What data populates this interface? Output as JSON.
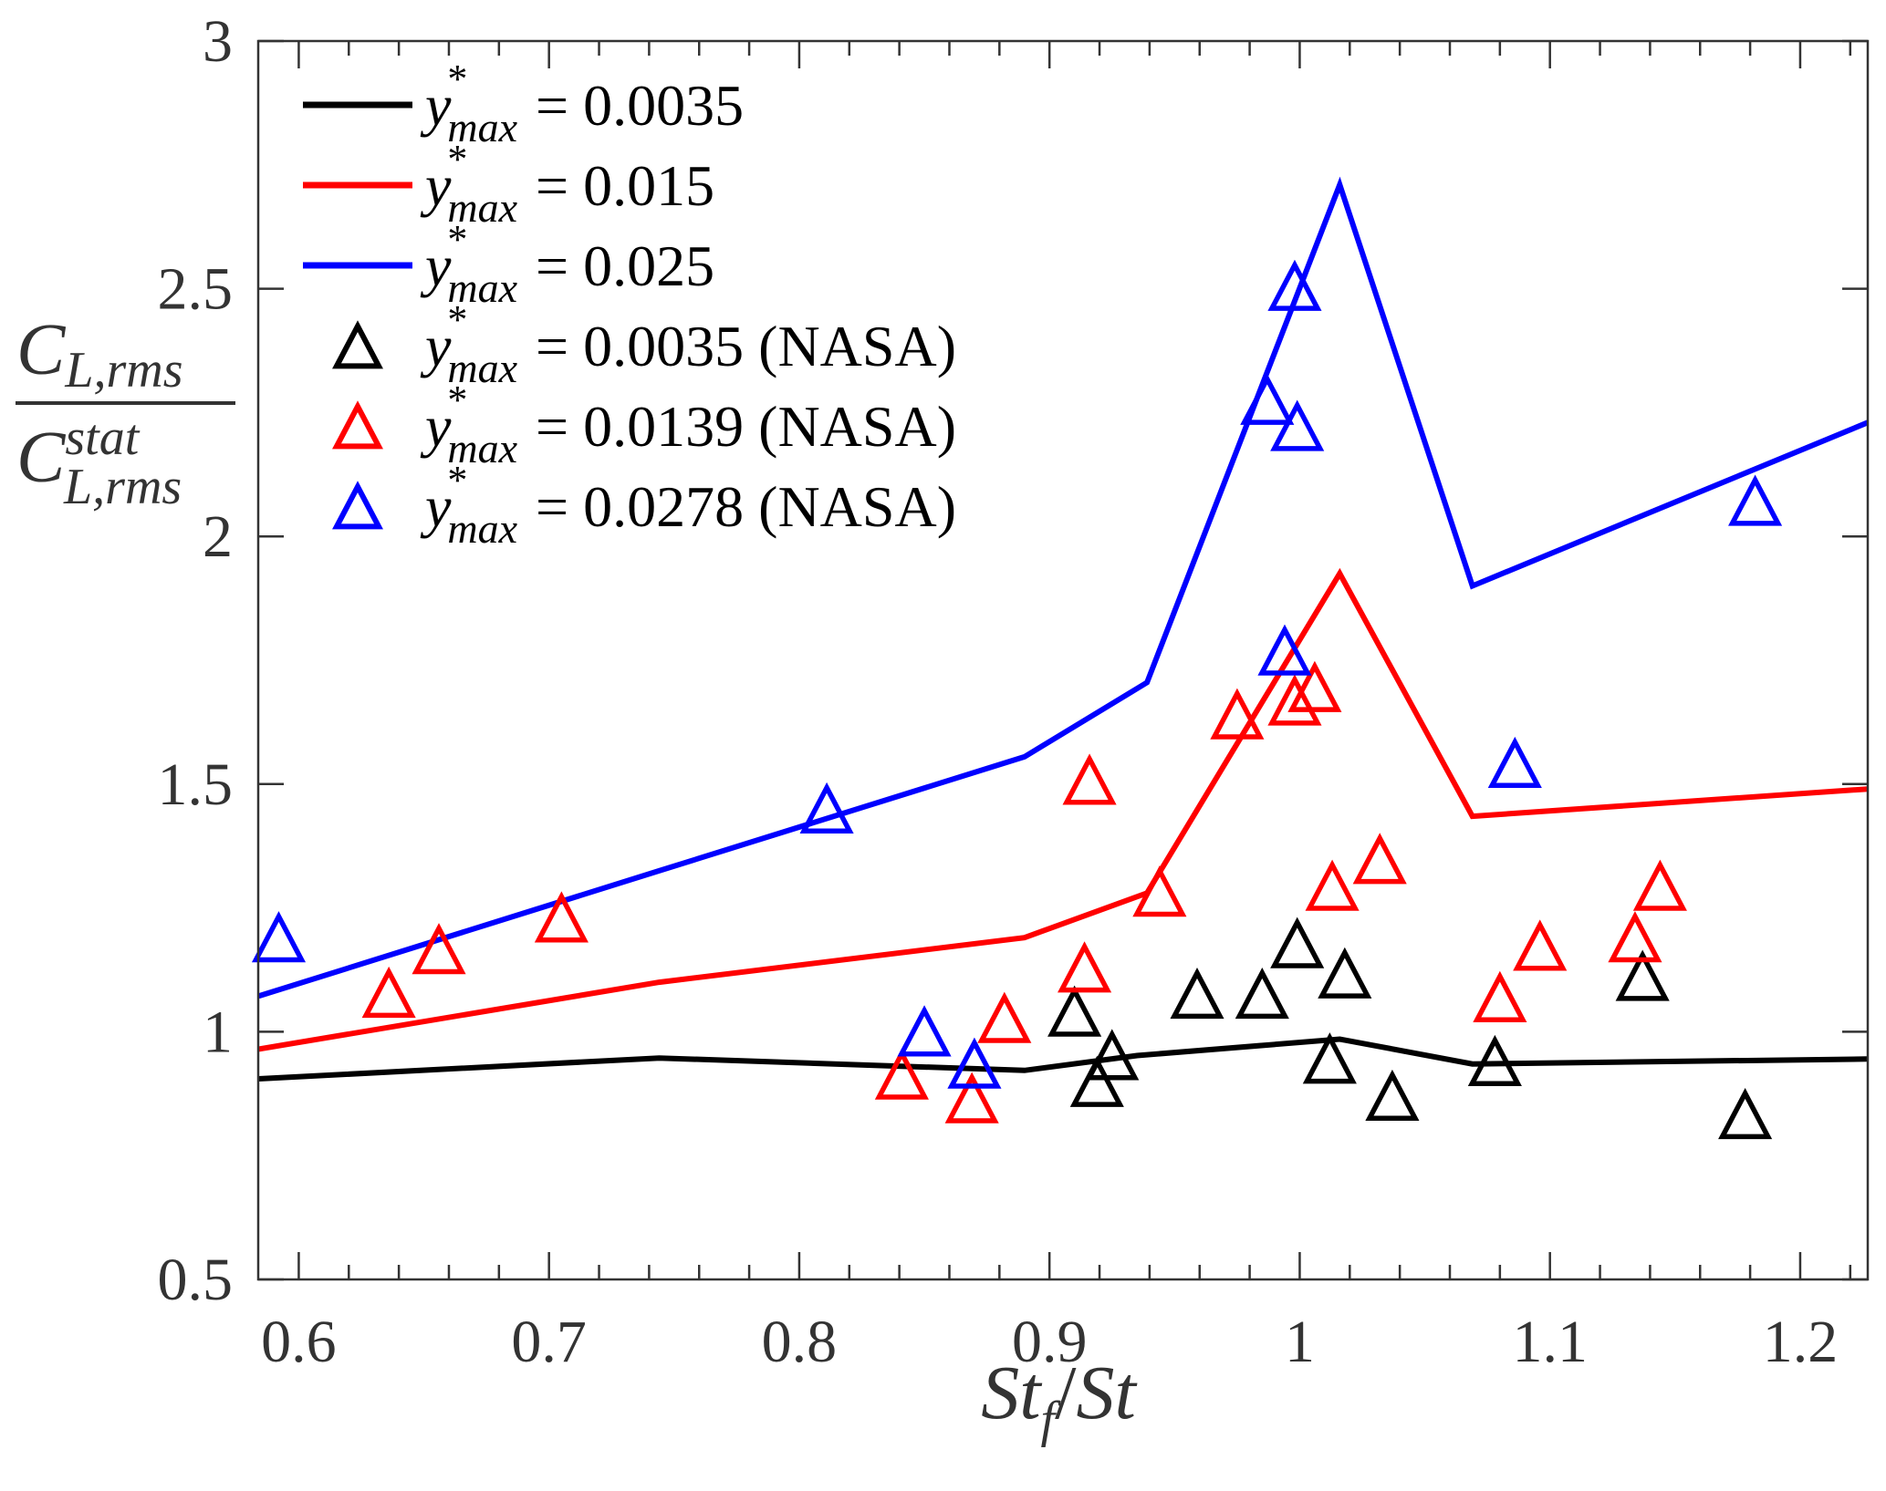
{
  "chart_data": {
    "type": "line",
    "title": "",
    "xlabel": "St_f / St",
    "xlabel_parts": {
      "main1": "St",
      "sub1": "f",
      "slash": "/",
      "main2": "St"
    },
    "ylabel": "C_L,rms / C_L,rms^stat",
    "ylabel_parts": {
      "num_main": "C",
      "num_sub": "L,rms",
      "den_main": "C",
      "den_sub": "L,rms",
      "den_sup": "stat"
    },
    "xlim": [
      0.5838,
      1.227
    ],
    "ylim": [
      0.5,
      3
    ],
    "xticks": [
      0.6,
      0.7,
      0.8,
      0.9,
      1.0,
      1.1,
      1.2
    ],
    "xtick_labels": [
      "0.6",
      "0.7",
      "0.8",
      "0.9",
      "1",
      "1.1",
      "1.2"
    ],
    "xminor_step": 0.02,
    "yticks": [
      0.5,
      1,
      1.5,
      2,
      2.5,
      3
    ],
    "ytick_labels": [
      "0.5",
      "1",
      "1.5",
      "2",
      "2.5",
      "3"
    ],
    "grid": false,
    "legend_position": "top-left",
    "series": [
      {
        "name": "y*_max = 0.0035",
        "legend_value": "0.0035",
        "legend_suffix": "",
        "kind": "line",
        "color": "#000000",
        "x": [
          0.584,
          0.744,
          0.89,
          0.935,
          1.016,
          1.069,
          1.227
        ],
        "y": [
          0.905,
          0.947,
          0.922,
          0.952,
          0.985,
          0.935,
          0.945
        ]
      },
      {
        "name": "y*_max = 0.015",
        "legend_value": "0.015",
        "legend_suffix": "",
        "kind": "line",
        "color": "#ff0000",
        "x": [
          0.584,
          0.744,
          0.89,
          0.939,
          1.016,
          1.069,
          1.227
        ],
        "y": [
          0.965,
          1.1,
          1.19,
          1.28,
          1.925,
          1.435,
          1.49
        ]
      },
      {
        "name": "y*_max = 0.025",
        "legend_value": "0.025",
        "legend_suffix": "",
        "kind": "line",
        "color": "#0000ff",
        "x": [
          0.584,
          0.744,
          0.89,
          0.939,
          1.016,
          1.069,
          1.227
        ],
        "y": [
          1.072,
          1.325,
          1.555,
          1.705,
          2.71,
          1.9,
          2.23
        ]
      },
      {
        "name": "y*_max = 0.0035 (NASA)",
        "legend_value": "0.0035",
        "legend_suffix": "(NASA)",
        "kind": "marker",
        "marker": "triangle-open",
        "color": "#000000",
        "x": [
          0.91,
          0.919,
          0.925,
          0.959,
          0.985,
          0.999,
          1.012,
          1.018,
          1.037,
          1.078,
          1.137,
          1.178
        ],
        "y": [
          1.032,
          0.89,
          0.944,
          1.068,
          1.068,
          1.17,
          0.937,
          1.109,
          0.862,
          0.932,
          1.104,
          0.825
        ]
      },
      {
        "name": "y*_max = 0.0139 (NASA)",
        "legend_value": "0.0139",
        "legend_suffix": "(NASA)",
        "kind": "marker",
        "marker": "triangle-open",
        "color": "#ff0000",
        "x": [
          0.636,
          0.656,
          0.705,
          0.841,
          0.869,
          0.882,
          0.914,
          0.916,
          0.944,
          0.975,
          0.998,
          1.006,
          1.013,
          1.032,
          1.08,
          1.096,
          1.134,
          1.144
        ],
        "y": [
          1.07,
          1.158,
          1.222,
          0.905,
          0.857,
          1.019,
          1.121,
          1.5,
          1.274,
          1.632,
          1.66,
          1.687,
          1.286,
          1.34,
          1.061,
          1.165,
          1.182,
          1.286
        ]
      },
      {
        "name": "y*_max = 0.0278 (NASA)",
        "legend_value": "0.0278",
        "legend_suffix": "(NASA)",
        "kind": "marker",
        "marker": "triangle-open",
        "color": "#0000ff",
        "x": [
          0.592,
          0.811,
          0.85,
          0.87,
          0.987,
          0.994,
          0.998,
          0.999,
          1.086,
          1.182
        ],
        "y": [
          1.182,
          1.442,
          0.992,
          0.927,
          2.267,
          1.761,
          2.497,
          2.214,
          1.534,
          2.063
        ]
      }
    ],
    "legend_label_parts": {
      "var": "y",
      "sup": "*",
      "sub": "max",
      "eq": "="
    }
  }
}
